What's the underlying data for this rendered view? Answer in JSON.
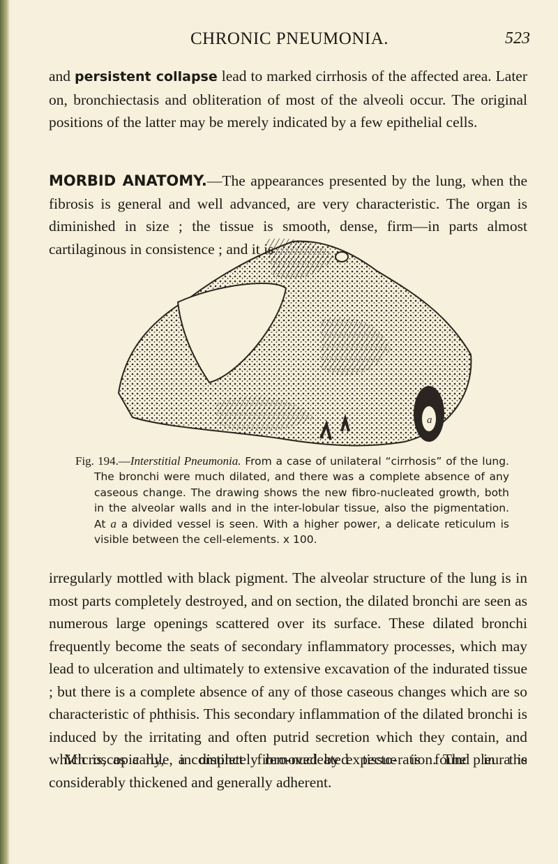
{
  "header": {
    "title": "CHRONIC PNEUMONIA.",
    "page_number": "523"
  },
  "paragraphs": [
    {
      "before": "and ",
      "bold": "persistent collapse",
      "after": " lead to marked cirrhosis of the affected area. Later on, bronchiectasis and obliteration of most of the alveoli occur. The original positions of the latter may be merely indicated by a few epithelial cells."
    },
    {
      "heading": "MORBID ANATOMY.",
      "text": "—The appearances presented by the lung, when the fibrosis is general and well advanced, are very characteristic. The organ is diminished in size ; the tissue is smooth, dense, firm—in parts almost cartilaginous in consistence ; and it is"
    },
    {
      "text": "irregularly mottled with black pigment. The alveolar structure of the lung is in most parts completely destroyed, and on section, the dilated bronchi are seen as numerous large openings scattered over its surface. These dilated bronchi frequently become the seats of secondary inflammatory processes, which may lead to ulceration and ultimately to extensive excavation of the indurated tissue ; but there is a complete absence of any of those caseous changes which are so characteristic of phthisis. This secondary inflammation of the dilated bronchi is induced by the irritating and often putrid secretion which they contain, and which is, as a rule, incompletely removed by expecto-ration. The pleura is considerably thickened and generally adherent."
    },
    {
      "text": "Microscopically, a distinct fibro-nucleated tissue is found in the"
    }
  ],
  "figure": {
    "label": "a",
    "caption": {
      "number": "Fig. 194.—",
      "title": "Interstitial Pneumonia.",
      "text1": " From a case of unilateral “cirrhosis” of the lung. The bronchi were much dilated, and there was a complete absence of any caseous change. The drawing shows the new fibro-nucleated growth, both in the alveolar walls and in the inter-lobular tissue, also the pigmentation. At ",
      "italic": "a",
      "text2": " a divided vessel is seen. With a higher power, a delicate reticulum is visible between the cell-elements. x 100."
    }
  }
}
